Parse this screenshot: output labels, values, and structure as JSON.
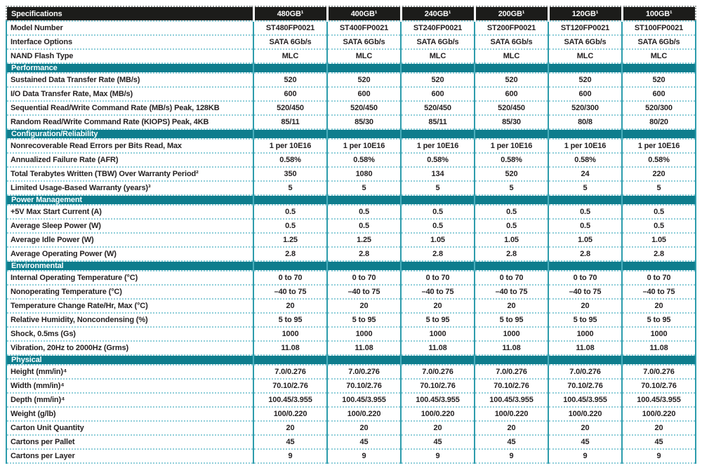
{
  "palette": {
    "section_teal": "#0e7d8d",
    "header_black": "#1c1c1a",
    "vertical_border": "#2d9cac",
    "horizontal_border": "#8fced9",
    "text": "#231f20"
  },
  "table": {
    "header": {
      "label": "Specifications",
      "columns": [
        "480GB¹",
        "400GB¹",
        "240GB¹",
        "200GB¹",
        "120GB¹",
        "100GB¹"
      ]
    },
    "sections": [
      {
        "title": "",
        "rows": [
          {
            "label": "Model Number",
            "values": [
              "ST480FP0021",
              "ST400FP0021",
              "ST240FP0021",
              "ST200FP0021",
              "ST120FP0021",
              "ST100FP0021"
            ]
          },
          {
            "label": "Interface Options",
            "values": [
              "SATA 6Gb/s",
              "SATA 6Gb/s",
              "SATA 6Gb/s",
              "SATA 6Gb/s",
              "SATA 6Gb/s",
              "SATA 6Gb/s"
            ]
          },
          {
            "label": "NAND Flash Type",
            "values": [
              "MLC",
              "MLC",
              "MLC",
              "MLC",
              "MLC",
              "MLC"
            ]
          }
        ]
      },
      {
        "title": "Performance",
        "rows": [
          {
            "label": "Sustained Data Transfer Rate (MB/s)",
            "values": [
              "520",
              "520",
              "520",
              "520",
              "520",
              "520"
            ]
          },
          {
            "label": "I/O Data Transfer Rate, Max (MB/s)",
            "values": [
              "600",
              "600",
              "600",
              "600",
              "600",
              "600"
            ]
          },
          {
            "label": "Sequential Read/Write Command Rate (MB/s) Peak, 128KB",
            "values": [
              "520/450",
              "520/450",
              "520/450",
              "520/450",
              "520/300",
              "520/300"
            ]
          },
          {
            "label": "Random Read/Write Command Rate (KIOPS) Peak, 4KB",
            "values": [
              "85/11",
              "85/30",
              "85/11",
              "85/30",
              "80/8",
              "80/20"
            ]
          }
        ]
      },
      {
        "title": "Configuration/Reliability",
        "rows": [
          {
            "label": "Nonrecoverable Read Errors per Bits Read, Max",
            "values": [
              "1 per 10E16",
              "1 per 10E16",
              "1 per 10E16",
              "1 per 10E16",
              "1 per 10E16",
              "1 per 10E16"
            ]
          },
          {
            "label": "Annualized Failure Rate (AFR)",
            "values": [
              "0.58%",
              "0.58%",
              "0.58%",
              "0.58%",
              "0.58%",
              "0.58%"
            ]
          },
          {
            "label": "Total Terabytes Written (TBW) Over Warranty Period²",
            "values": [
              "350",
              "1080",
              "134",
              "520",
              "24",
              "220"
            ]
          },
          {
            "label": "Limited Usage-Based Warranty (years)³",
            "values": [
              "5",
              "5",
              "5",
              "5",
              "5",
              "5"
            ]
          }
        ]
      },
      {
        "title": "Power Management",
        "rows": [
          {
            "label": "+5V Max Start Current (A)",
            "values": [
              "0.5",
              "0.5",
              "0.5",
              "0.5",
              "0.5",
              "0.5"
            ]
          },
          {
            "label": "Average Sleep Power (W)",
            "values": [
              "0.5",
              "0.5",
              "0.5",
              "0.5",
              "0.5",
              "0.5"
            ]
          },
          {
            "label": "Average Idle Power (W)",
            "values": [
              "1.25",
              "1.25",
              "1.05",
              "1.05",
              "1.05",
              "1.05"
            ]
          },
          {
            "label": "Average Operating Power (W)",
            "values": [
              "2.8",
              "2.8",
              "2.8",
              "2.8",
              "2.8",
              "2.8"
            ]
          }
        ]
      },
      {
        "title": "Environmental",
        "rows": [
          {
            "label": "Internal Operating Temperature (°C)",
            "values": [
              "0 to 70",
              "0 to 70",
              "0 to 70",
              "0 to 70",
              "0 to 70",
              "0 to 70"
            ]
          },
          {
            "label": "Nonoperating Temperature (°C)",
            "values": [
              "–40 to 75",
              "–40 to 75",
              "–40 to 75",
              "–40 to 75",
              "–40 to 75",
              "–40 to 75"
            ]
          },
          {
            "label": "Temperature Change Rate/Hr, Max (°C)",
            "values": [
              "20",
              "20",
              "20",
              "20",
              "20",
              "20"
            ]
          },
          {
            "label": "Relative Humidity, Noncondensing (%)",
            "values": [
              "5 to 95",
              "5 to 95",
              "5 to 95",
              "5 to 95",
              "5 to 95",
              "5 to 95"
            ]
          },
          {
            "label": "Shock, 0.5ms (Gs)",
            "values": [
              "1000",
              "1000",
              "1000",
              "1000",
              "1000",
              "1000"
            ]
          },
          {
            "label": "Vibration, 20Hz to 2000Hz (Grms)",
            "values": [
              "11.08",
              "11.08",
              "11.08",
              "11.08",
              "11.08",
              "11.08"
            ]
          }
        ]
      },
      {
        "title": "Physical",
        "rows": [
          {
            "label": "Height (mm/in)⁴",
            "values": [
              "7.0/0.276",
              "7.0/0.276",
              "7.0/0.276",
              "7.0/0.276",
              "7.0/0.276",
              "7.0/0.276"
            ]
          },
          {
            "label": "Width (mm/in)⁴",
            "values": [
              "70.10/2.76",
              "70.10/2.76",
              "70.10/2.76",
              "70.10/2.76",
              "70.10/2.76",
              "70.10/2.76"
            ]
          },
          {
            "label": "Depth (mm/in)⁴",
            "values": [
              "100.45/3.955",
              "100.45/3.955",
              "100.45/3.955",
              "100.45/3.955",
              "100.45/3.955",
              "100.45/3.955"
            ]
          },
          {
            "label": "Weight (g/lb)",
            "values": [
              "100/0.220",
              "100/0.220",
              "100/0.220",
              "100/0.220",
              "100/0.220",
              "100/0.220"
            ]
          },
          {
            "label": "Carton Unit Quantity",
            "values": [
              "20",
              "20",
              "20",
              "20",
              "20",
              "20"
            ]
          },
          {
            "label": "Cartons per Pallet",
            "values": [
              "45",
              "45",
              "45",
              "45",
              "45",
              "45"
            ]
          },
          {
            "label": "Cartons per Layer",
            "values": [
              "9",
              "9",
              "9",
              "9",
              "9",
              "9"
            ]
          }
        ]
      }
    ]
  }
}
